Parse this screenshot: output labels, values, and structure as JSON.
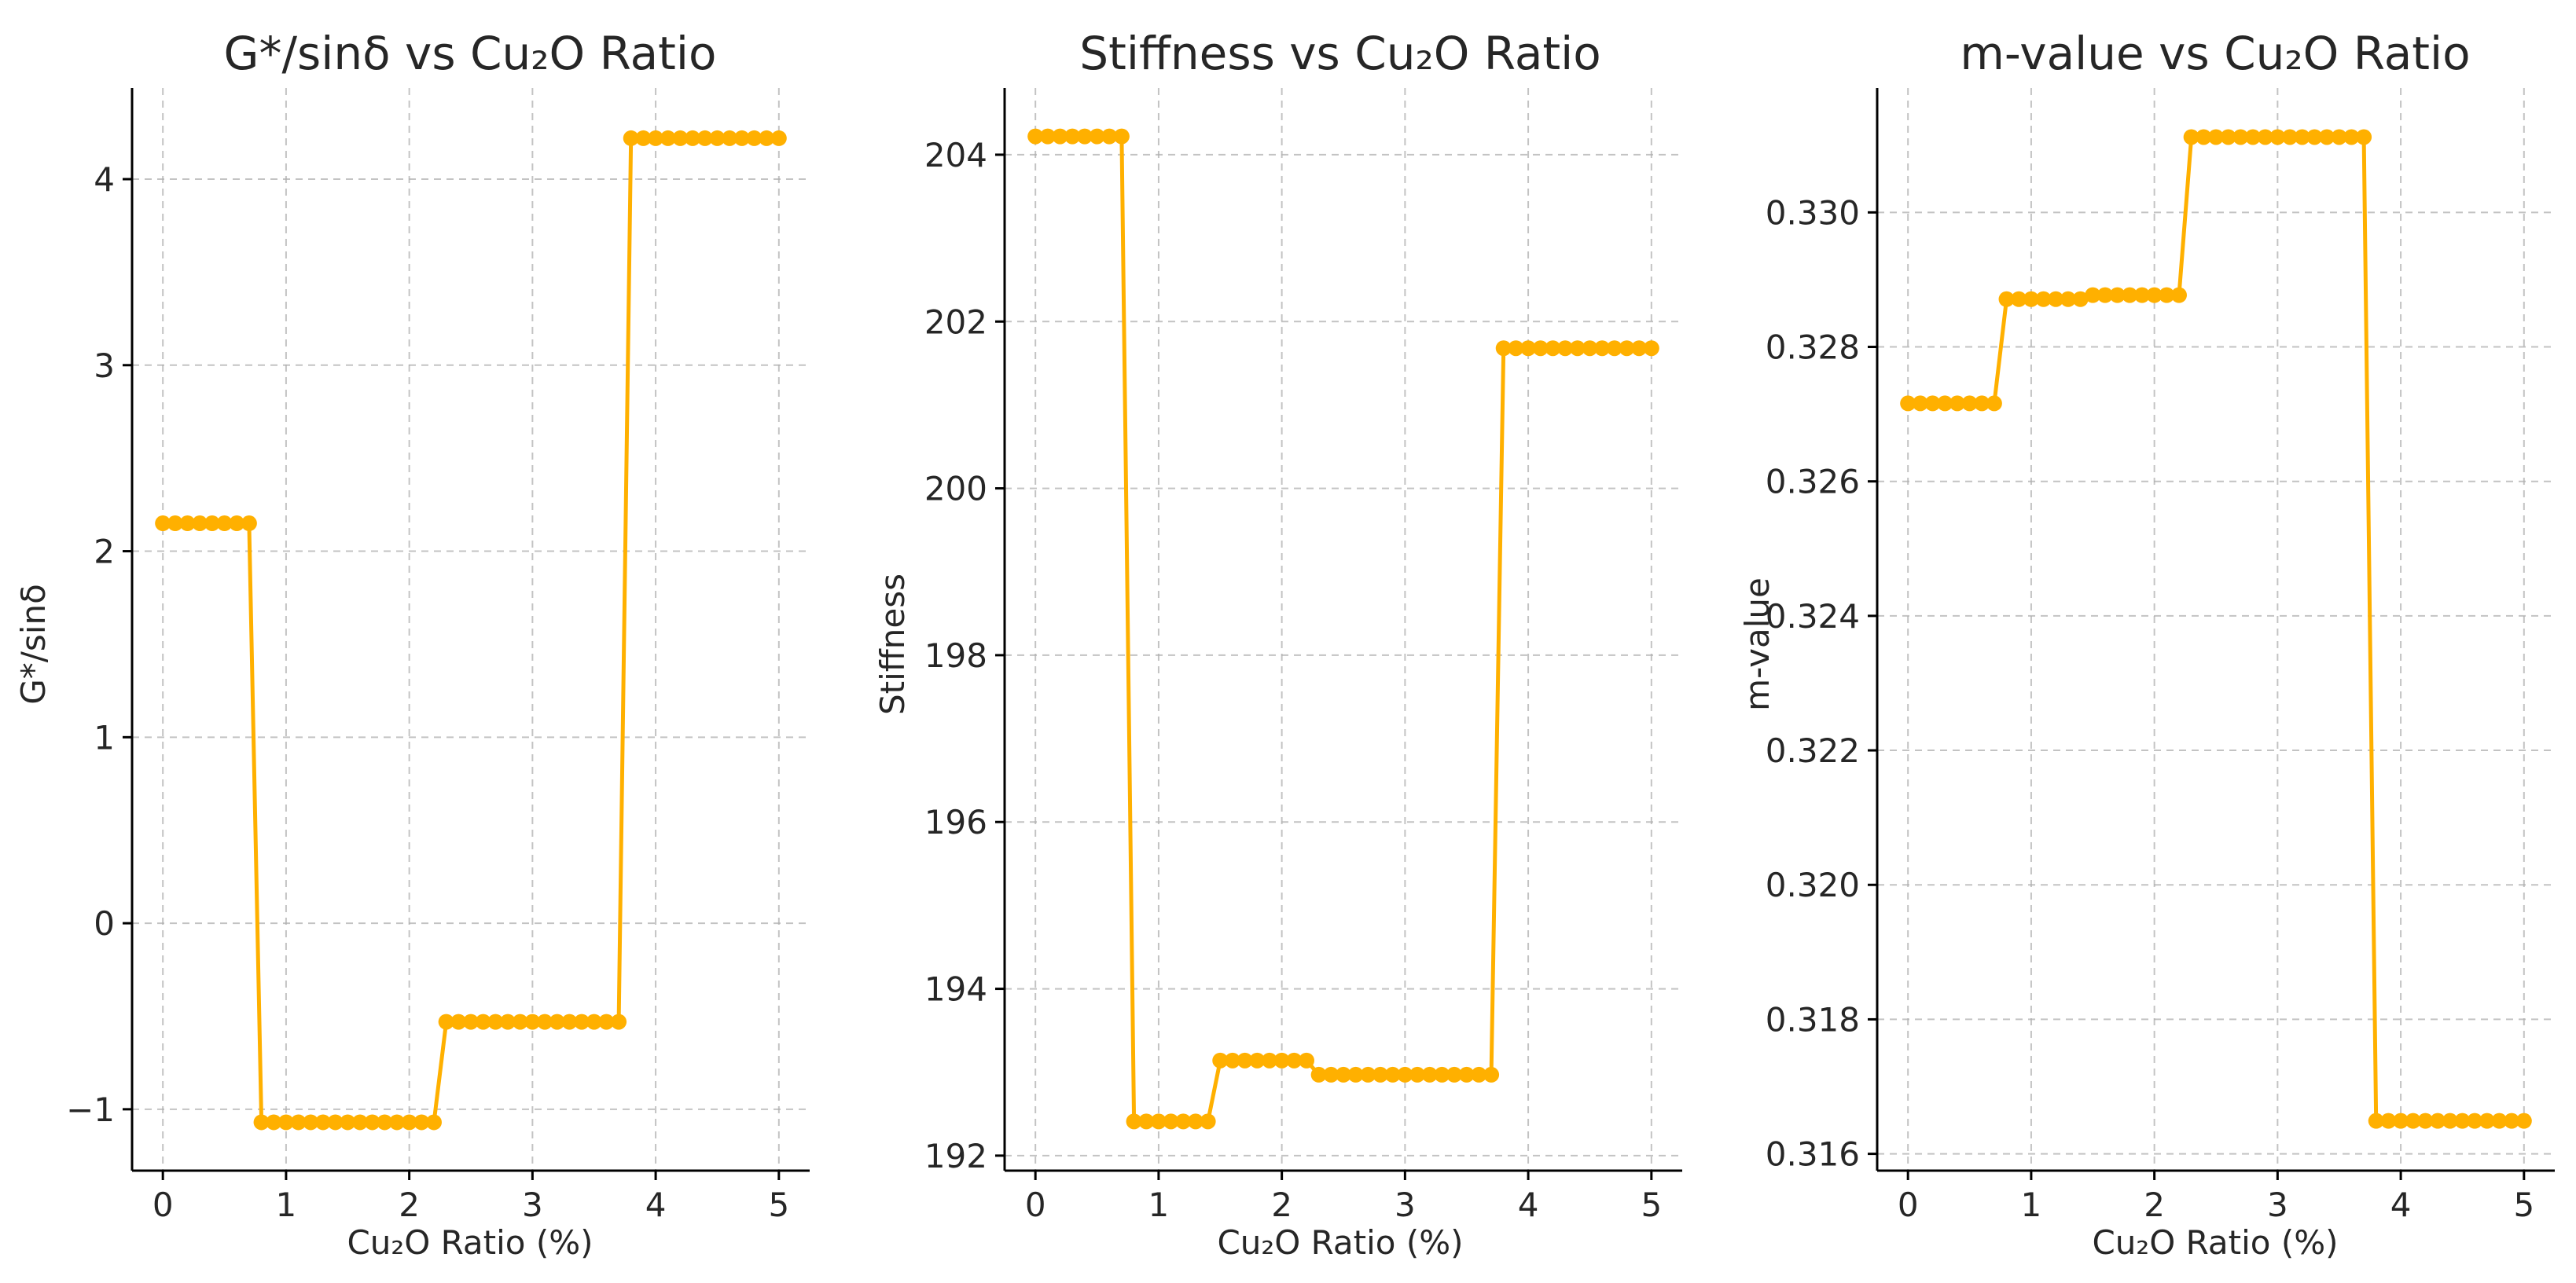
{
  "figure": {
    "series_color": "#FFB000"
  },
  "chart_data": [
    {
      "type": "line",
      "title": "G*/sinδ vs Cu₂O Ratio",
      "xlabel": "Cu₂O Ratio (%)",
      "ylabel": "G*/sinδ",
      "xlim": [
        -0.25,
        5.25
      ],
      "ylim": [
        -1.33,
        4.49
      ],
      "xticks": [
        0,
        1,
        2,
        3,
        4,
        5
      ],
      "xtick_labels": [
        "0",
        "1",
        "2",
        "3",
        "4",
        "5"
      ],
      "yticks": [
        -1,
        0,
        1,
        2,
        3,
        4
      ],
      "ytick_labels": [
        "−1",
        "0",
        "1",
        "2",
        "3",
        "4"
      ],
      "grid": true,
      "levels": [
        {
          "from": 0.0,
          "to": 0.7,
          "value": 2.15
        },
        {
          "from": 0.8,
          "to": 2.2,
          "value": -1.07
        },
        {
          "from": 2.3,
          "to": 3.7,
          "value": -0.53
        },
        {
          "from": 3.8,
          "to": 5.0,
          "value": 4.22
        }
      ],
      "series": [
        {
          "name": "G*/sinδ",
          "x": [
            0.0,
            0.1,
            0.2,
            0.3,
            0.4,
            0.5,
            0.6,
            0.7,
            0.8,
            0.9,
            1.0,
            1.1,
            1.2,
            1.3,
            1.4,
            1.5,
            1.6,
            1.7,
            1.8,
            1.9,
            2.0,
            2.1,
            2.2,
            2.3,
            2.4,
            2.5,
            2.6,
            2.7,
            2.8,
            2.9,
            3.0,
            3.1,
            3.2,
            3.3,
            3.4,
            3.5,
            3.6,
            3.7,
            3.8,
            3.9,
            4.0,
            4.1,
            4.2,
            4.3,
            4.4,
            4.5,
            4.6,
            4.7,
            4.8,
            4.9,
            5.0
          ],
          "y": [
            2.15,
            2.15,
            2.15,
            2.15,
            2.15,
            2.15,
            2.15,
            2.15,
            -1.07,
            -1.07,
            -1.07,
            -1.07,
            -1.07,
            -1.07,
            -1.07,
            -1.07,
            -1.07,
            -1.07,
            -1.07,
            -1.07,
            -1.07,
            -1.07,
            -1.07,
            -0.53,
            -0.53,
            -0.53,
            -0.53,
            -0.53,
            -0.53,
            -0.53,
            -0.53,
            -0.53,
            -0.53,
            -0.53,
            -0.53,
            -0.53,
            -0.53,
            -0.53,
            4.22,
            4.22,
            4.22,
            4.22,
            4.22,
            4.22,
            4.22,
            4.22,
            4.22,
            4.22,
            4.22,
            4.22,
            4.22
          ]
        }
      ]
    },
    {
      "type": "line",
      "title": "Stiffness vs Cu₂O Ratio",
      "xlabel": "Cu₂O Ratio (%)",
      "ylabel": "Stiffness",
      "xlim": [
        -0.25,
        5.25
      ],
      "ylim": [
        191.82,
        204.8
      ],
      "xticks": [
        0,
        1,
        2,
        3,
        4,
        5
      ],
      "xtick_labels": [
        "0",
        "1",
        "2",
        "3",
        "4",
        "5"
      ],
      "yticks": [
        192,
        194,
        196,
        198,
        200,
        202,
        204
      ],
      "ytick_labels": [
        "192",
        "194",
        "196",
        "198",
        "200",
        "202",
        "204"
      ],
      "grid": true,
      "levels": [
        {
          "from": 0.0,
          "to": 0.7,
          "value": 204.22
        },
        {
          "from": 0.8,
          "to": 1.4,
          "value": 192.41
        },
        {
          "from": 1.5,
          "to": 2.2,
          "value": 193.14
        },
        {
          "from": 2.3,
          "to": 3.7,
          "value": 192.97
        },
        {
          "from": 3.8,
          "to": 5.0,
          "value": 201.68
        }
      ],
      "series": [
        {
          "name": "Stiffness",
          "x": [
            0.0,
            0.1,
            0.2,
            0.3,
            0.4,
            0.5,
            0.6,
            0.7,
            0.8,
            0.9,
            1.0,
            1.1,
            1.2,
            1.3,
            1.4,
            1.5,
            1.6,
            1.7,
            1.8,
            1.9,
            2.0,
            2.1,
            2.2,
            2.3,
            2.4,
            2.5,
            2.6,
            2.7,
            2.8,
            2.9,
            3.0,
            3.1,
            3.2,
            3.3,
            3.4,
            3.5,
            3.6,
            3.7,
            3.8,
            3.9,
            4.0,
            4.1,
            4.2,
            4.3,
            4.4,
            4.5,
            4.6,
            4.7,
            4.8,
            4.9,
            5.0
          ],
          "y": [
            204.22,
            204.22,
            204.22,
            204.22,
            204.22,
            204.22,
            204.22,
            204.22,
            192.41,
            192.41,
            192.41,
            192.41,
            192.41,
            192.41,
            192.41,
            193.14,
            193.14,
            193.14,
            193.14,
            193.14,
            193.14,
            193.14,
            193.14,
            192.97,
            192.97,
            192.97,
            192.97,
            192.97,
            192.97,
            192.97,
            192.97,
            192.97,
            192.97,
            192.97,
            192.97,
            192.97,
            192.97,
            192.97,
            201.68,
            201.68,
            201.68,
            201.68,
            201.68,
            201.68,
            201.68,
            201.68,
            201.68,
            201.68,
            201.68,
            201.68,
            201.68
          ]
        }
      ]
    },
    {
      "type": "line",
      "title": "m-value vs Cu₂O Ratio",
      "xlabel": "Cu₂O Ratio (%)",
      "ylabel": "m-value",
      "xlim": [
        -0.25,
        5.25
      ],
      "ylim": [
        0.31575,
        0.33185
      ],
      "xticks": [
        0,
        1,
        2,
        3,
        4,
        5
      ],
      "xtick_labels": [
        "0",
        "1",
        "2",
        "3",
        "4",
        "5"
      ],
      "yticks": [
        0.316,
        0.318,
        0.32,
        0.322,
        0.324,
        0.326,
        0.328,
        0.33
      ],
      "ytick_labels": [
        "0.316",
        "0.318",
        "0.320",
        "0.322",
        "0.324",
        "0.326",
        "0.328",
        "0.330"
      ],
      "grid": true,
      "levels": [
        {
          "from": 0.0,
          "to": 0.7,
          "value": 0.32716
        },
        {
          "from": 0.8,
          "to": 1.4,
          "value": 0.32871
        },
        {
          "from": 1.5,
          "to": 2.2,
          "value": 0.32877
        },
        {
          "from": 2.3,
          "to": 3.7,
          "value": 0.33112
        },
        {
          "from": 3.8,
          "to": 5.0,
          "value": 0.31649
        }
      ],
      "series": [
        {
          "name": "m-value",
          "x": [
            0.0,
            0.1,
            0.2,
            0.3,
            0.4,
            0.5,
            0.6,
            0.7,
            0.8,
            0.9,
            1.0,
            1.1,
            1.2,
            1.3,
            1.4,
            1.5,
            1.6,
            1.7,
            1.8,
            1.9,
            2.0,
            2.1,
            2.2,
            2.3,
            2.4,
            2.5,
            2.6,
            2.7,
            2.8,
            2.9,
            3.0,
            3.1,
            3.2,
            3.3,
            3.4,
            3.5,
            3.6,
            3.7,
            3.8,
            3.9,
            4.0,
            4.1,
            4.2,
            4.3,
            4.4,
            4.5,
            4.6,
            4.7,
            4.8,
            4.9,
            5.0
          ],
          "y": [
            0.32716,
            0.32716,
            0.32716,
            0.32716,
            0.32716,
            0.32716,
            0.32716,
            0.32716,
            0.32871,
            0.32871,
            0.32871,
            0.32871,
            0.32871,
            0.32871,
            0.32871,
            0.32877,
            0.32877,
            0.32877,
            0.32877,
            0.32877,
            0.32877,
            0.32877,
            0.32877,
            0.33112,
            0.33112,
            0.33112,
            0.33112,
            0.33112,
            0.33112,
            0.33112,
            0.33112,
            0.33112,
            0.33112,
            0.33112,
            0.33112,
            0.33112,
            0.33112,
            0.33112,
            0.31649,
            0.31649,
            0.31649,
            0.31649,
            0.31649,
            0.31649,
            0.31649,
            0.31649,
            0.31649,
            0.31649,
            0.31649,
            0.31649,
            0.31649
          ]
        }
      ]
    }
  ]
}
